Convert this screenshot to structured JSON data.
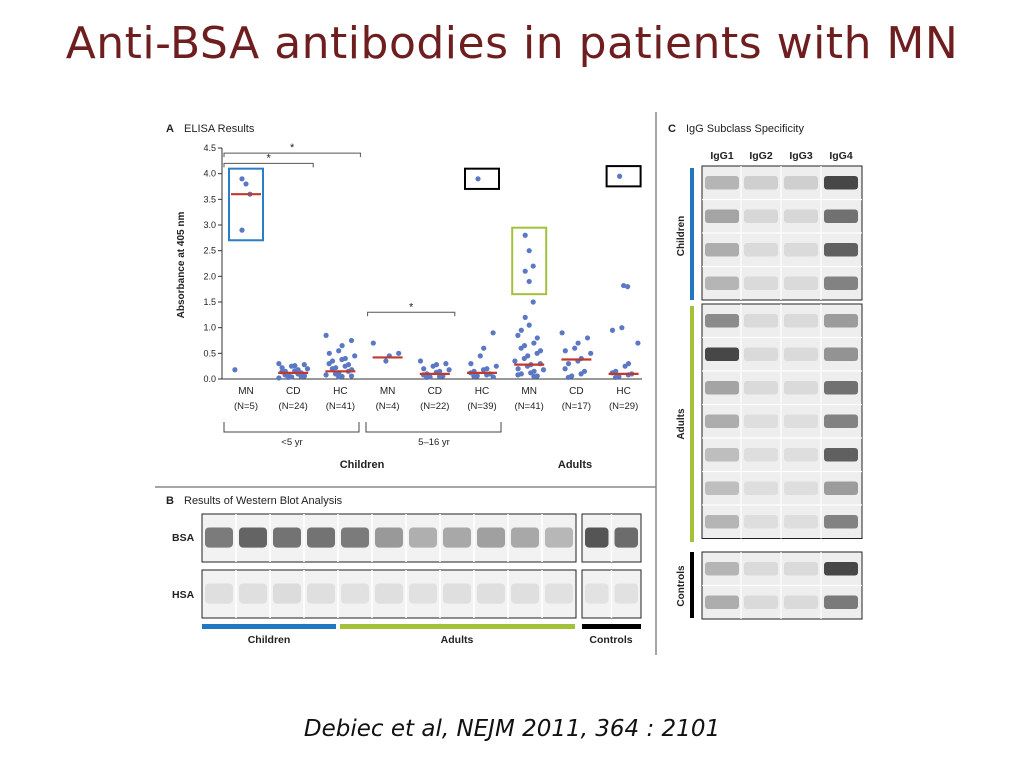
{
  "slide": {
    "title": "Anti-BSA antibodies in patients with MN",
    "citation": "Debiec et al, NEJM 2011, 364 : 2101"
  },
  "panel_a": {
    "letter": "A",
    "title": "ELISA Results",
    "groups": [
      {
        "label": "MN",
        "n": "(N=5)"
      },
      {
        "label": "CD",
        "n": "(N=24)"
      },
      {
        "label": "HC",
        "n": "(N=41)"
      },
      {
        "label": "MN",
        "n": "(N=4)"
      },
      {
        "label": "CD",
        "n": "(N=22)"
      },
      {
        "label": "HC",
        "n": "(N=39)"
      },
      {
        "label": "MN",
        "n": "(N=41)"
      },
      {
        "label": "CD",
        "n": "(N=17)"
      },
      {
        "label": "HC",
        "n": "(N=29)"
      }
    ],
    "age_under5": "<5 yr",
    "age_5to16": "5–16 yr",
    "children": "Children",
    "adults": "Adults",
    "significance": "*"
  },
  "panel_b": {
    "letter": "B",
    "title": "Results of Western Blot Analysis",
    "row_bsa": "BSA",
    "row_hsa": "HSA",
    "children": "Children",
    "adults": "Adults",
    "controls": "Controls",
    "colors": {
      "children": "#1f78c1",
      "adults": "#a3c23a",
      "controls": "#000000"
    }
  },
  "panel_c": {
    "letter": "C",
    "title": "IgG Subclass Specificity",
    "columns": [
      "IgG1",
      "IgG2",
      "IgG3",
      "IgG4"
    ],
    "children": "Children",
    "adults": "Adults",
    "controls": "Controls"
  },
  "chart_data": {
    "type": "scatter",
    "title": "ELISA Results",
    "ylabel": "Absorbance at 405 nm",
    "ylim": [
      0,
      4.5
    ],
    "yticks": [
      "0.0",
      "0.5",
      "1.0",
      "1.5",
      "2.0",
      "2.5",
      "3.0",
      "3.5",
      "4.0",
      "4.5"
    ],
    "categories": [
      "MN",
      "CD",
      "HC",
      "MN",
      "CD",
      "HC",
      "MN",
      "CD",
      "HC"
    ],
    "groups": [
      {
        "points": [
          3.9,
          3.8,
          3.6,
          2.9,
          0.18
        ],
        "median": 3.6
      },
      {
        "points": [
          0.3,
          0.28,
          0.26,
          0.25,
          0.22,
          0.2,
          0.18,
          0.16,
          0.15,
          0.14,
          0.12,
          0.1,
          0.09,
          0.08,
          0.06,
          0.05,
          0.04,
          0.03,
          0.02
        ],
        "median": 0.12
      },
      {
        "points": [
          0.85,
          0.75,
          0.65,
          0.55,
          0.5,
          0.45,
          0.4,
          0.38,
          0.35,
          0.3,
          0.28,
          0.25,
          0.22,
          0.2,
          0.18,
          0.15,
          0.12,
          0.1,
          0.08,
          0.06,
          0.05,
          0.04
        ],
        "median": 0.15
      },
      {
        "points": [
          0.7,
          0.5,
          0.45,
          0.35
        ],
        "median": 0.42
      },
      {
        "points": [
          0.35,
          0.3,
          0.28,
          0.25,
          0.2,
          0.18,
          0.15,
          0.13,
          0.1,
          0.08,
          0.06,
          0.05,
          0.04,
          0.03
        ],
        "median": 0.1
      },
      {
        "points": [
          3.9,
          0.9,
          0.6,
          0.45,
          0.3,
          0.25,
          0.2,
          0.18,
          0.15,
          0.12,
          0.1,
          0.08,
          0.06,
          0.05,
          0.04
        ],
        "median": 0.12
      },
      {
        "points": [
          2.8,
          2.5,
          2.2,
          2.1,
          1.9,
          1.5,
          1.2,
          1.05,
          0.95,
          0.85,
          0.8,
          0.7,
          0.65,
          0.6,
          0.55,
          0.5,
          0.45,
          0.4,
          0.35,
          0.3,
          0.28,
          0.25,
          0.2,
          0.18,
          0.15,
          0.12,
          0.1,
          0.08,
          0.06,
          0.05
        ],
        "median": 0.28
      },
      {
        "points": [
          0.9,
          0.8,
          0.7,
          0.6,
          0.55,
          0.5,
          0.4,
          0.35,
          0.3,
          0.2,
          0.15,
          0.1,
          0.06,
          0.03
        ],
        "median": 0.38
      },
      {
        "points": [
          3.95,
          1.82,
          1.8,
          1.0,
          0.95,
          0.7,
          0.3,
          0.25,
          0.15,
          0.12,
          0.1,
          0.08,
          0.05,
          0.03
        ],
        "median": 0.1
      }
    ],
    "highlight_boxes": [
      {
        "group": 0,
        "range": [
          2.8,
          4.0
        ],
        "color": "#2a7fc4"
      },
      {
        "group": 5,
        "range": [
          3.8,
          4.0
        ],
        "color": "#000000"
      },
      {
        "group": 6,
        "range": [
          1.75,
          2.85
        ],
        "color": "#a3c23a"
      },
      {
        "group": 8,
        "range": [
          3.85,
          4.05
        ],
        "color": "#000000"
      }
    ],
    "comparisons": [
      {
        "from": 0,
        "to": 1,
        "level": 4.2,
        "label": "*"
      },
      {
        "from": 0,
        "to": 2,
        "level": 4.4,
        "label": "*"
      },
      {
        "from": 3,
        "to": 4,
        "level": 1.3,
        "label": "*"
      }
    ],
    "point_color": "#5b78c4",
    "median_color": "#c0392b"
  }
}
